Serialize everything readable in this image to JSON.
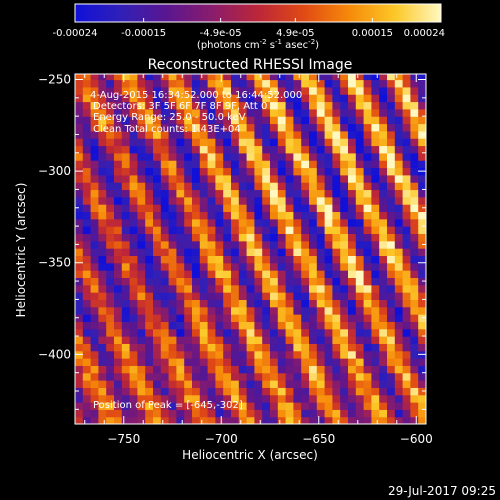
{
  "title": "Reconstructed RHESSI Image",
  "colorbar": {
    "ticks": [
      "-0.00024",
      "-0.00015",
      "-4.9e-05",
      "4.9e-05",
      "0.00015",
      "0.00024"
    ],
    "tick_values": [
      -0.00024,
      -0.00015,
      -4.9e-05,
      4.9e-05,
      0.00015,
      0.00024
    ],
    "range": [
      -0.00024,
      0.00024
    ],
    "units_parts": [
      "(photons cm",
      "-2",
      " s",
      "-1",
      " asec",
      "-2",
      ")"
    ],
    "colors": [
      "#1010d8",
      "#3020b8",
      "#5a1690",
      "#8a1c6c",
      "#bc2638",
      "#e04a14",
      "#f68a0a",
      "#fcc828",
      "#fff8c0"
    ]
  },
  "annotations": {
    "time": "4-Aug-2015 16:34:52.000 to 16:44:52.000",
    "detectors": "Detectors: 3F 5F 6F 7F 8F 9F, Att 0",
    "energy": "Energy Range: 25.0 - 50.0 keV",
    "clean": "Clean     Total counts: 1.43E+04",
    "peak": "Position of Peak = [-645,-302]"
  },
  "footer": {
    "date": "29-Jul-2017 09:25"
  },
  "chart_data": {
    "type": "heatmap",
    "title": "Reconstructed RHESSI Image",
    "xlabel": "Heliocentric X (arcsec)",
    "ylabel": "Heliocentric Y (arcsec)",
    "xlim": [
      -775,
      -595
    ],
    "ylim": [
      -438,
      -247
    ],
    "x_ticks": [
      -750,
      -700,
      -650,
      -600
    ],
    "y_ticks": [
      -250,
      -300,
      -350,
      -400
    ],
    "x_tick_labels": [
      "−750",
      "−700",
      "−650",
      "−600"
    ],
    "y_tick_labels": [
      "−250",
      "−300",
      "−350",
      "−400"
    ],
    "peak": [
      -645,
      -302
    ],
    "value_range": [
      -0.00024,
      0.00024
    ],
    "cell_size_arcsec": 4
  }
}
